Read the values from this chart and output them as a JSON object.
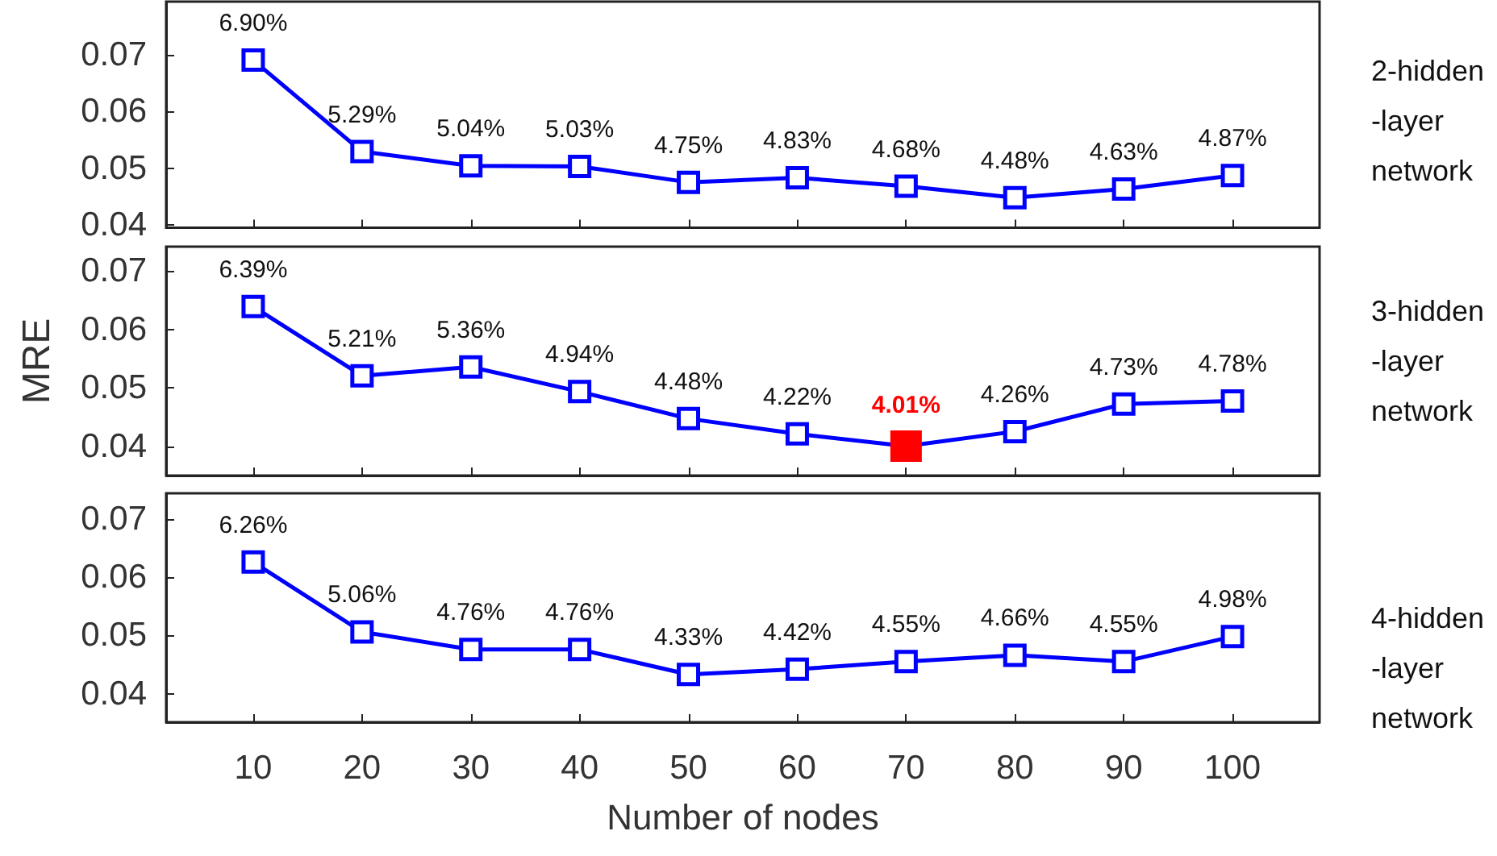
{
  "chart_data": [
    {
      "type": "line",
      "x": [
        10,
        20,
        30,
        40,
        50,
        60,
        70,
        80,
        90,
        100
      ],
      "xlim": [
        2,
        108
      ],
      "xticks": [
        10,
        20,
        30,
        40,
        50,
        60,
        70,
        80,
        90,
        100
      ],
      "ylim": [
        0.0395,
        0.0793
      ],
      "yticks": [
        0.04,
        0.05,
        0.06,
        0.07
      ],
      "tick_labels": "y",
      "grid": false,
      "marker": "square",
      "line_style": "solid",
      "annotations": [
        "2-hidden\n-layer\nnetwork"
      ],
      "series": [
        {
          "color": "#0000ff",
          "values": [
            0.069,
            0.0529,
            0.0504,
            0.0503,
            0.0475,
            0.0483,
            0.0468,
            0.0448,
            0.0463,
            0.0487
          ],
          "value_labels": [
            "6.90%",
            "5.29%",
            "5.04%",
            "5.03%",
            "4.75%",
            "4.83%",
            "4.68%",
            "4.48%",
            "4.63%",
            "4.87%"
          ]
        }
      ]
    },
    {
      "type": "line",
      "x": [
        10,
        20,
        30,
        40,
        50,
        60,
        70,
        80,
        90,
        100
      ],
      "xlim": [
        2,
        108
      ],
      "xticks": [
        10,
        20,
        30,
        40,
        50,
        60,
        70,
        80,
        90,
        100
      ],
      "ylim": [
        0.0351,
        0.0741
      ],
      "yticks": [
        0.04,
        0.05,
        0.06,
        0.07
      ],
      "tick_labels": "y",
      "ylabel": "MRE",
      "grid": false,
      "marker": "square",
      "line_style": "solid",
      "annotations": [
        "3-hidden\n-layer\nnetwork"
      ],
      "series": [
        {
          "color": "#0000ff",
          "colors": [
            "#0000ff",
            "#0000ff",
            "#0000ff",
            "#0000ff",
            "#0000ff",
            "#0000ff",
            "#ff0000",
            "#0000ff",
            "#0000ff",
            "#0000ff"
          ],
          "values": [
            0.0639,
            0.0521,
            0.0536,
            0.0494,
            0.0448,
            0.0422,
            0.0401,
            0.0426,
            0.0473,
            0.0478
          ],
          "value_labels": [
            "6.39%",
            "5.21%",
            "5.36%",
            "4.94%",
            "4.48%",
            "4.22%",
            "4.01%",
            "4.26%",
            "4.73%",
            "4.78%"
          ]
        }
      ]
    },
    {
      "type": "line",
      "x": [
        10,
        20,
        30,
        40,
        50,
        60,
        70,
        80,
        90,
        100
      ],
      "xlim": [
        2,
        108
      ],
      "xticks": [
        10,
        20,
        30,
        40,
        50,
        60,
        70,
        80,
        90,
        100
      ],
      "ylim": [
        0.0351,
        0.0744
      ],
      "yticks": [
        0.04,
        0.05,
        0.06,
        0.07
      ],
      "xlabel": "Number of nodes",
      "grid": false,
      "marker": "square",
      "line_style": "solid",
      "annotations": [
        "4-hidden\n-layer\nnetwork"
      ],
      "series": [
        {
          "color": "#0000ff",
          "values": [
            0.0626,
            0.0506,
            0.0476,
            0.0476,
            0.0433,
            0.0442,
            0.0455,
            0.0466,
            0.0455,
            0.0498
          ],
          "value_labels": [
            "6.26%",
            "5.06%",
            "4.76%",
            "4.76%",
            "4.33%",
            "4.42%",
            "4.55%",
            "4.66%",
            "4.55%",
            "4.98%"
          ]
        }
      ]
    }
  ]
}
